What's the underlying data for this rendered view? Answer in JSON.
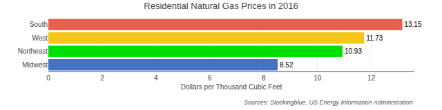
{
  "chart_data": {
    "type": "bar",
    "orientation": "horizontal",
    "title": "Residential Natural Gas Prices in 2016",
    "categories": [
      "Midwest",
      "Northeast",
      "West",
      "South"
    ],
    "values": [
      8.52,
      10.93,
      11.73,
      13.15
    ],
    "colors": [
      "#4472C4",
      "#00E000",
      "#F5C518",
      "#E8604C"
    ],
    "xlabel": "Dollars per Thousand Cubic Feet",
    "xlim": [
      0,
      13.6
    ],
    "xticks": [
      0,
      2,
      4,
      6,
      8,
      10,
      12
    ],
    "grid": true,
    "data_labels": true,
    "annotations": [
      "Sources: Stockingblue, US Energy Information Administration"
    ]
  }
}
